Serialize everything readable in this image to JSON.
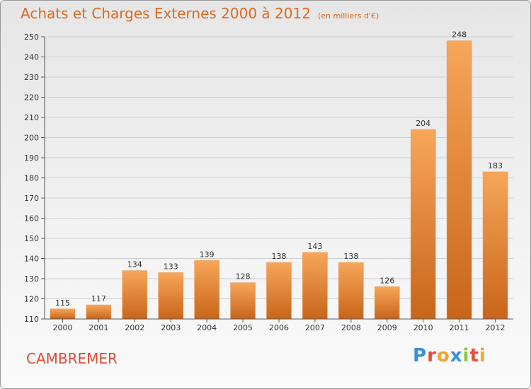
{
  "header": {
    "title": "Achats et Charges Externes 2000 à 2012",
    "unit": "(en milliers d'€)"
  },
  "footer": {
    "place": "CAMBREMER",
    "brand": "Proxiti"
  },
  "colors": {
    "title": "#e0691e",
    "place": "#e04a36",
    "bar_top": "#f7a65a",
    "bar_bottom": "#c8651a",
    "grid": "#cfcfcf",
    "axis": "#555555",
    "logo": [
      "#3a8fd6",
      "#e84c3d",
      "#f0a52b",
      "#3a8fd6",
      "#8cc63f",
      "#e84c3d",
      "#f0a52b"
    ]
  },
  "chart_data": {
    "type": "bar",
    "title": "Achats et Charges Externes 2000 à 2012",
    "subtitle": "(en milliers d'€)",
    "categories": [
      "2000",
      "2001",
      "2002",
      "2003",
      "2004",
      "2005",
      "2006",
      "2007",
      "2008",
      "2009",
      "2010",
      "2011",
      "2012"
    ],
    "values": [
      115,
      117,
      134,
      133,
      139,
      128,
      138,
      143,
      138,
      126,
      204,
      248,
      183
    ],
    "ylim": [
      110,
      250
    ],
    "yticks": [
      110,
      120,
      130,
      140,
      150,
      160,
      170,
      180,
      190,
      200,
      210,
      220,
      230,
      240,
      250
    ],
    "grid": true,
    "xlabel": "",
    "ylabel": ""
  }
}
